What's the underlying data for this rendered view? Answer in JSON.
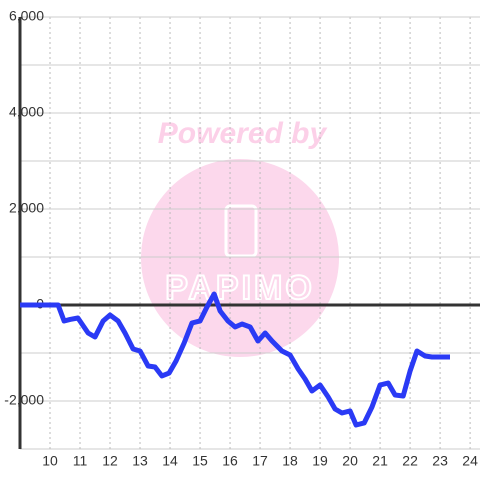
{
  "chart_data": {
    "type": "line",
    "watermark_text": "Powered by",
    "watermark_brand": "PAPIMO",
    "x": [
      9,
      10.27,
      10.47,
      10.67,
      10.93,
      11.27,
      11.5,
      11.77,
      12,
      12.27,
      12.5,
      12.77,
      13,
      13.27,
      13.5,
      13.73,
      13.97,
      14.2,
      14.47,
      14.73,
      15,
      15.23,
      15.47,
      15.67,
      15.93,
      16.17,
      16.4,
      16.67,
      16.93,
      17.17,
      17.4,
      17.73,
      18,
      18.27,
      18.5,
      18.73,
      19,
      19.27,
      19.5,
      19.73,
      20,
      20.2,
      20.47,
      20.73,
      21,
      21.27,
      21.5,
      21.77,
      22,
      22.23,
      22.5,
      22.73,
      23.33
    ],
    "series": [
      {
        "color": "#2a3af5",
        "values": [
          0,
          0,
          -333,
          -300,
          -271,
          -583,
          -667,
          -333,
          -208,
          -333,
          -583,
          -917,
          -958,
          -1271,
          -1292,
          -1479,
          -1417,
          -1167,
          -792,
          -375,
          -333,
          -42,
          229,
          -125,
          -333,
          -458,
          -396,
          -458,
          -750,
          -583,
          -750,
          -958,
          -1042,
          -1333,
          -1542,
          -1792,
          -1667,
          -1917,
          -2167,
          -2250,
          -2208,
          -2500,
          -2458,
          -2125,
          -1667,
          -1625,
          -1875,
          -1896,
          -1375,
          -958,
          -1063,
          -1083,
          -1083
        ]
      }
    ],
    "xlim": [
      9,
      24.33
    ],
    "ylim": [
      -3000,
      6000
    ],
    "xticks": [
      10,
      11,
      12,
      13,
      14,
      15,
      16,
      17,
      18,
      19,
      20,
      21,
      22,
      23,
      24
    ],
    "yticks": [
      {
        "value": -2000,
        "label": "-2,000"
      },
      0,
      {
        "value": 2000,
        "label": "2,000"
      },
      {
        "value": 4000,
        "label": "4,000"
      },
      {
        "value": 6000,
        "label": "6,000"
      }
    ],
    "yminor_grid": [
      -3000,
      -1000,
      1000,
      3000,
      5000
    ],
    "grid": true
  }
}
